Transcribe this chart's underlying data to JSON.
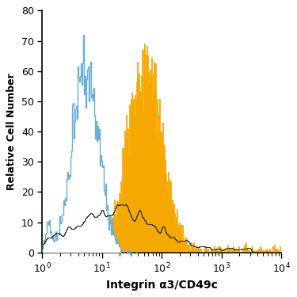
{
  "xlabel": "Integrin α3/CD49c",
  "ylabel": "Relative Cell Number",
  "xlim_log": [
    0,
    4
  ],
  "ylim": [
    0,
    80
  ],
  "yticks": [
    0,
    10,
    20,
    30,
    40,
    50,
    60,
    70,
    80
  ],
  "background_color": "#ffffff",
  "orange_color": "#F5A800",
  "blue_line_color": "#6AAFD6",
  "dark_outline_color": "#333333",
  "figure_size": [
    3.75,
    3.75
  ],
  "dpi": 100,
  "blue_peak_log": 0.72,
  "blue_log_std": 0.22,
  "blue_max": 72,
  "orange_peak_log": 1.72,
  "orange_log_std": 0.28,
  "orange_max": 69,
  "n_bins": 300
}
